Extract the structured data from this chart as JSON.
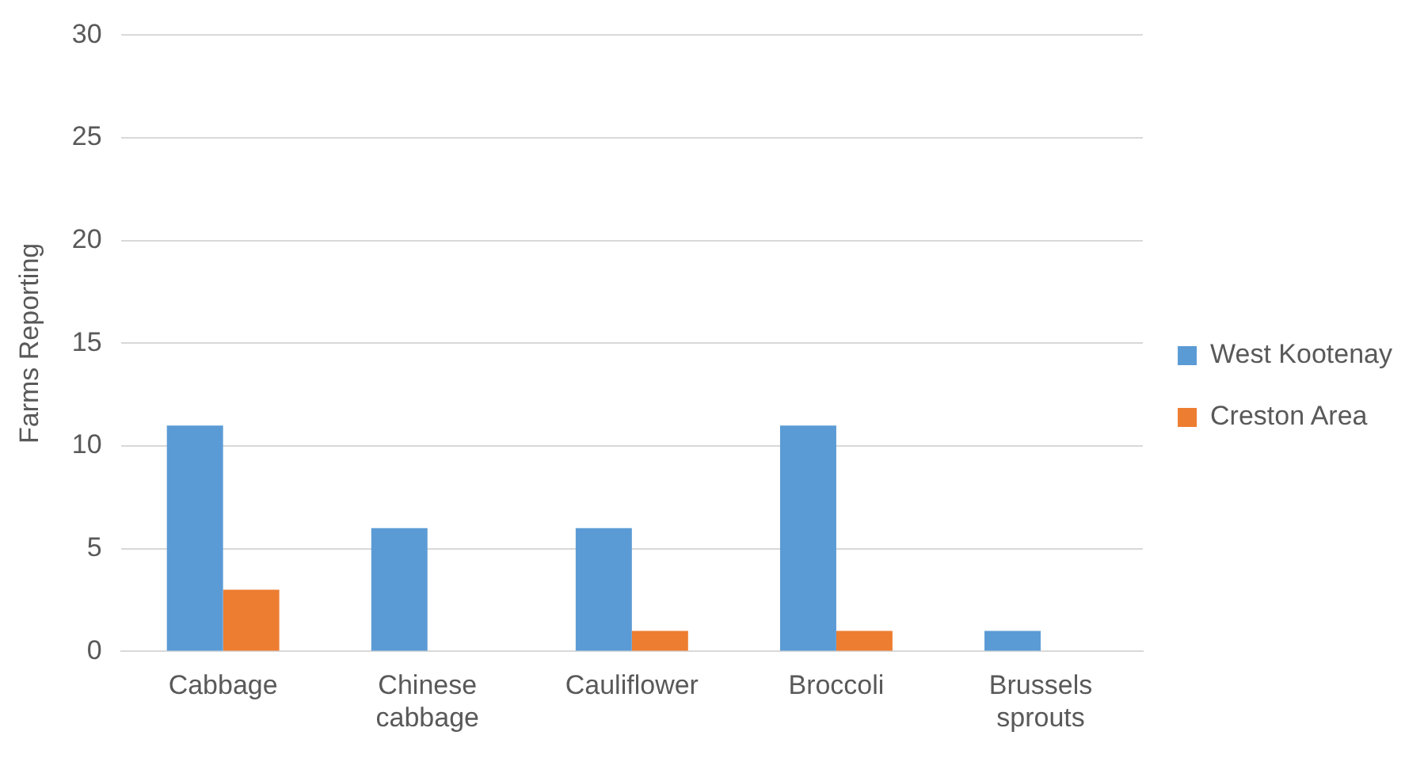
{
  "chart_data": {
    "type": "bar",
    "ylabel": "Farms Reporting",
    "categories": [
      "Cabbage",
      "Chinese cabbage",
      "Cauliflower",
      "Broccoli",
      "Brussels sprouts"
    ],
    "series": [
      {
        "name": "West Kootenay",
        "color": "#5b9bd5",
        "values": [
          11,
          6,
          6,
          11,
          1
        ]
      },
      {
        "name": "Creston Area",
        "color": "#ed7d31",
        "values": [
          3,
          0,
          1,
          1,
          0
        ]
      }
    ],
    "ylim": [
      0,
      30
    ],
    "yticks": [
      0,
      5,
      10,
      15,
      20,
      25,
      30
    ],
    "grid": "y",
    "legend": "right"
  }
}
